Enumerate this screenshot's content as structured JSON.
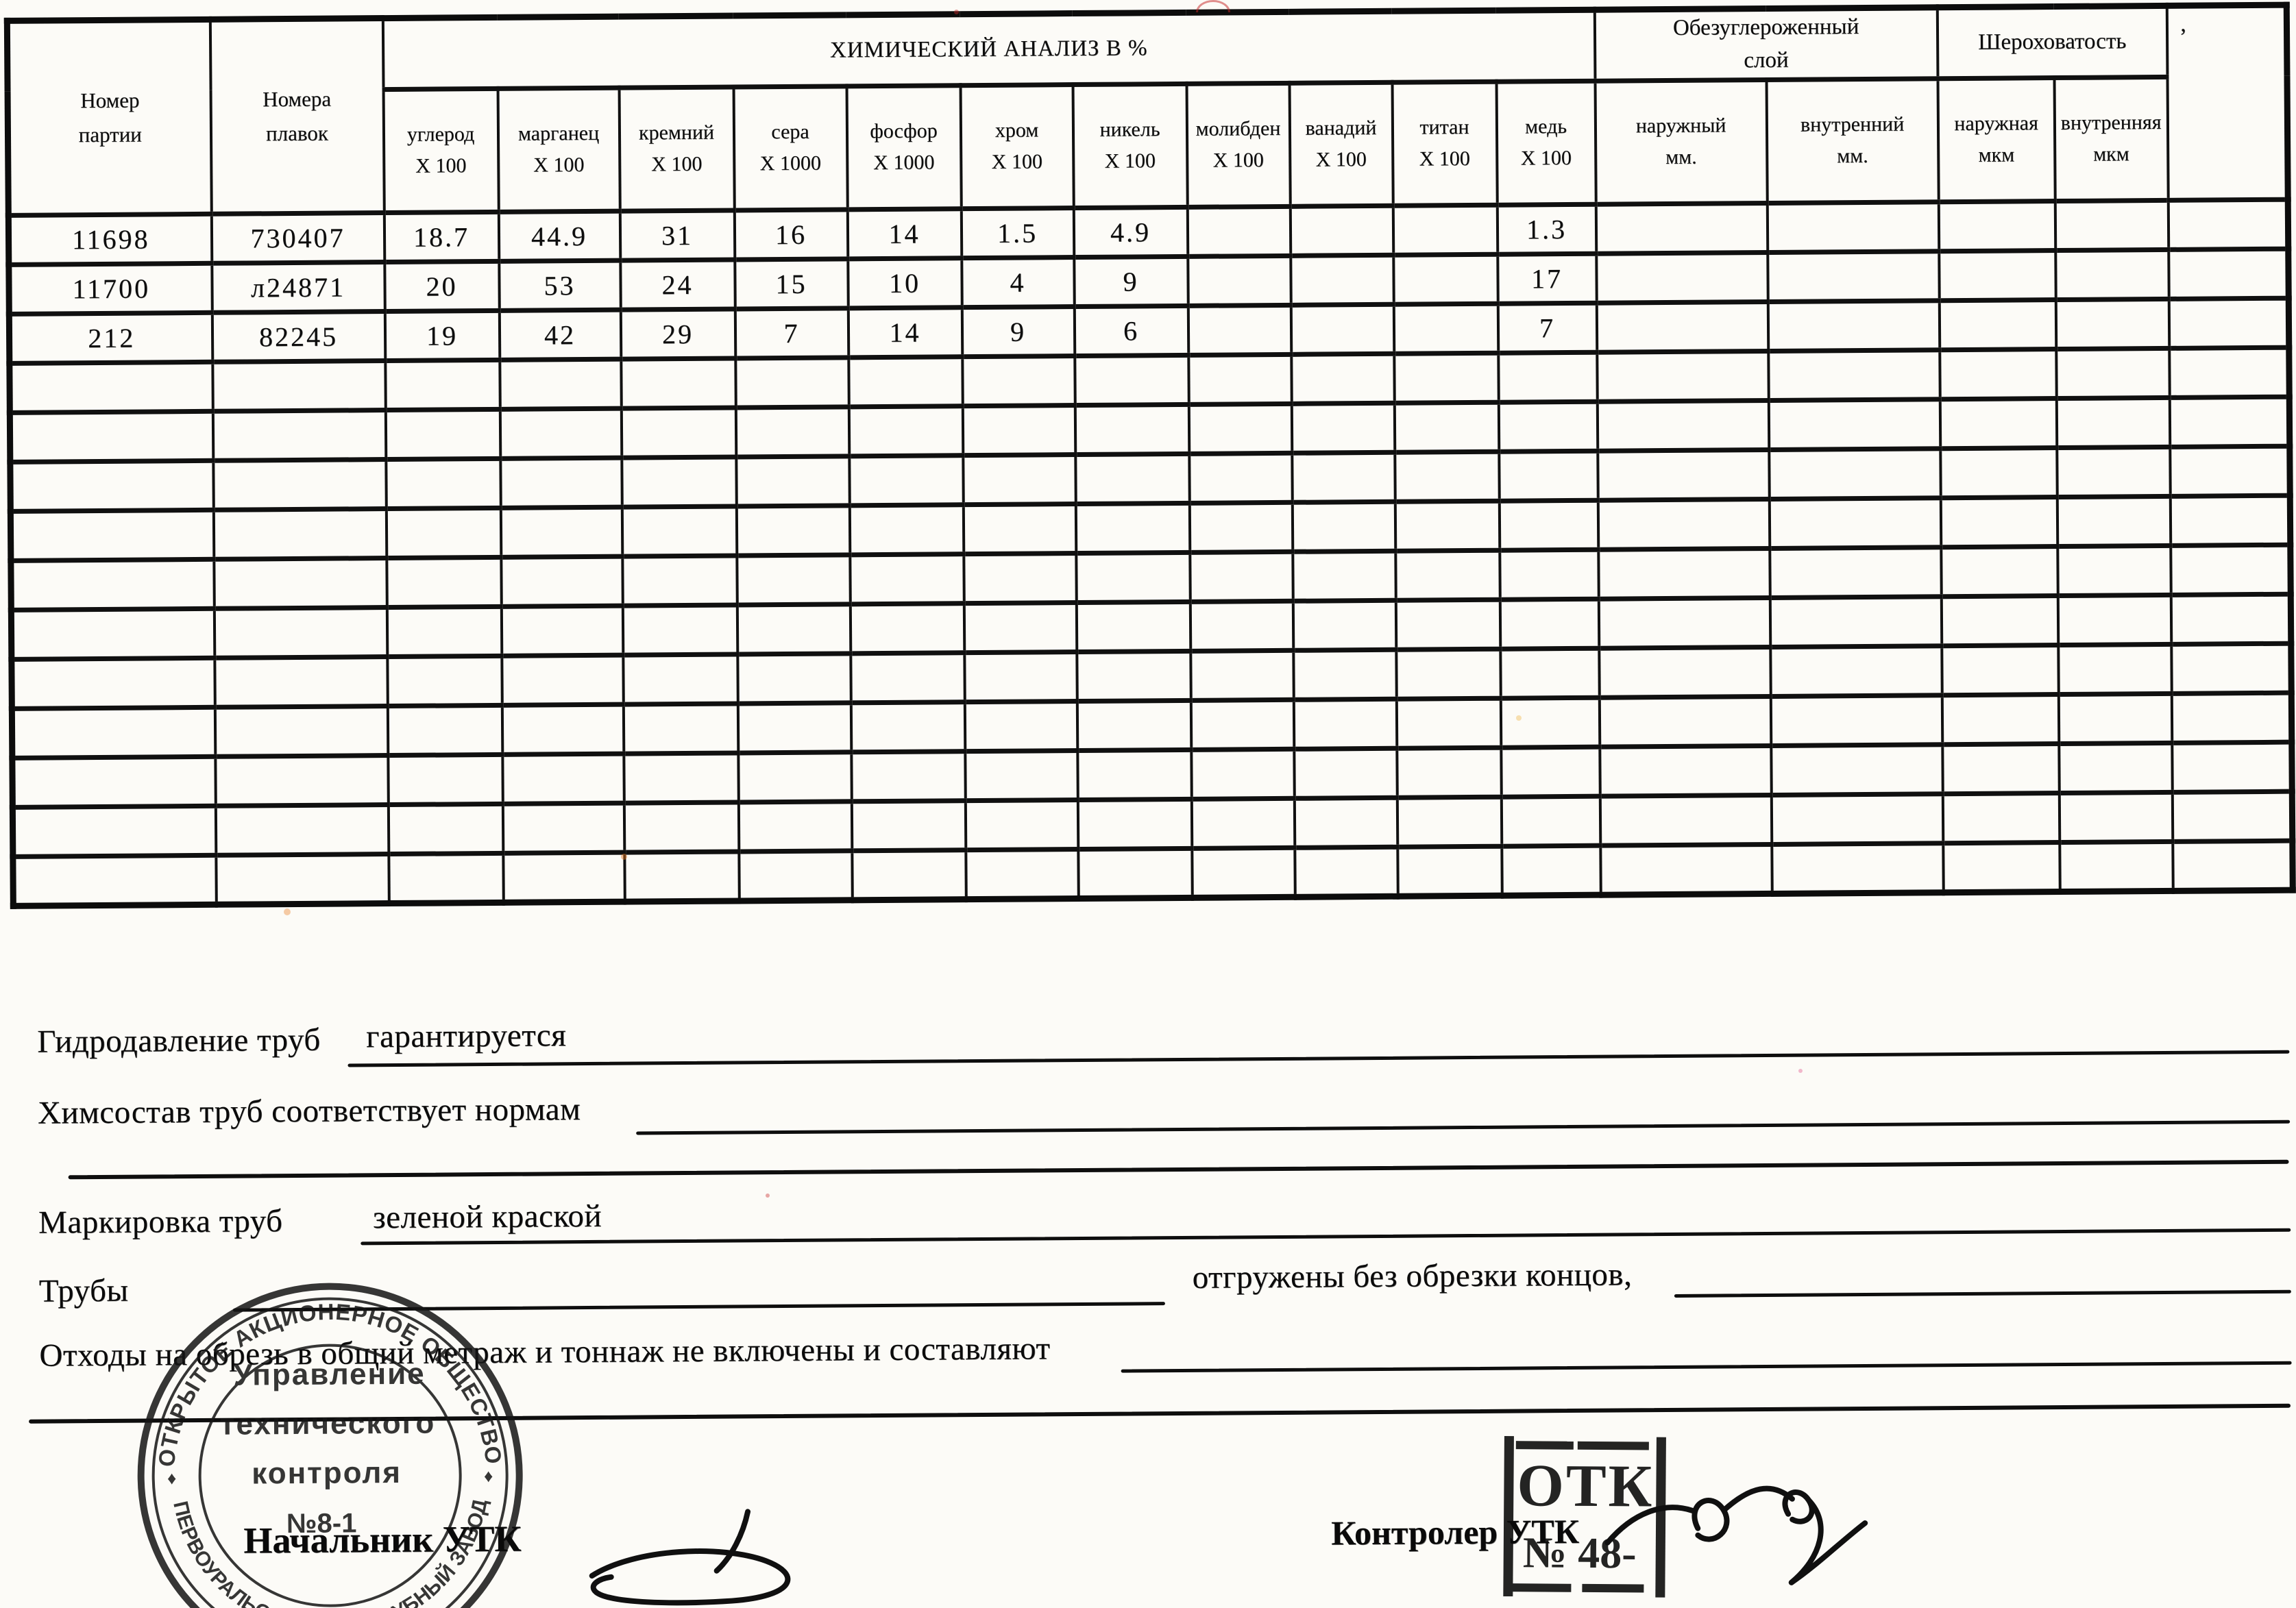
{
  "table": {
    "col_batch": "Номер партии",
    "col_melts": "Номера плавок",
    "chem_title": "ХИМИЧЕСКИЙ АНАЛИЗ В %",
    "chem_cols": [
      {
        "label": "углерод",
        "mult": "X 100"
      },
      {
        "label": "марганец",
        "mult": "X 100"
      },
      {
        "label": "кремний",
        "mult": "X 100"
      },
      {
        "label": "сера",
        "mult": "X 1000"
      },
      {
        "label": "фосфор",
        "mult": "X 1000"
      },
      {
        "label": "хром",
        "mult": "X 100"
      },
      {
        "label": "никель",
        "mult": "X 100"
      },
      {
        "label": "молибден",
        "mult": "X 100"
      },
      {
        "label": "ванадий",
        "mult": "X 100"
      },
      {
        "label": "титан",
        "mult": "X 100"
      },
      {
        "label": "медь",
        "mult": "X 100"
      }
    ],
    "decarb_title": "Обезуглероженный слой",
    "decarb_cols": [
      {
        "label": "наружный",
        "unit": "мм."
      },
      {
        "label": "внутренний",
        "unit": "мм."
      }
    ],
    "rough_title": "Шероховатость",
    "rough_cols": [
      {
        "label": "наружная",
        "unit": "мкм"
      },
      {
        "label": "внутренняя",
        "unit": "мкм"
      }
    ],
    "last_col_mark": "’",
    "rows": [
      [
        "11698",
        "730407",
        "18.7",
        "44.9",
        "31",
        "16",
        "14",
        "1.5",
        "4.9",
        "",
        "",
        "",
        "1.3",
        "",
        "",
        "",
        "",
        ""
      ],
      [
        "11700",
        "л24871",
        "20",
        "53",
        "24",
        "15",
        "10",
        "4",
        "9",
        "",
        "",
        "",
        "17",
        "",
        "",
        "",
        "",
        ""
      ],
      [
        "212",
        "82245",
        "19",
        "42",
        "29",
        "7",
        "14",
        "9",
        "6",
        "",
        "",
        "",
        "7",
        "",
        "",
        "",
        "",
        ""
      ]
    ],
    "empty_rows": 11
  },
  "footer": {
    "line1_label": "Гидродавление труб",
    "line1_value": "гарантируется",
    "line2_label": "Химсостав труб соответствует нормам",
    "line4_label": "Маркировка труб",
    "line4_value": "зеленой краской",
    "line5_label": "Трубы",
    "line5_mid": "отгружены без обрезки концов,",
    "line6_label": "Отходы на обрезь в общий метраж и тоннаж не включены и составляют"
  },
  "signatures": {
    "chief": "Начальник УТК",
    "controller": "Контролер УТК"
  },
  "round_stamp": {
    "arc_top": "ОТКРЫТОЕ АКЦИОНЕРНОЕ ОБЩЕСТВО",
    "arc_bottom": "ПЕРВОУРАЛЬСКИЙ НОВОТРУБНЫЙ ЗАВОД",
    "line1": "Управление",
    "line2": "технического",
    "line3": "контроля",
    "line4": "№8-1",
    "diamond": "♦"
  },
  "rect_stamp": {
    "line1": "ОТК",
    "line2": "№ 48-"
  }
}
